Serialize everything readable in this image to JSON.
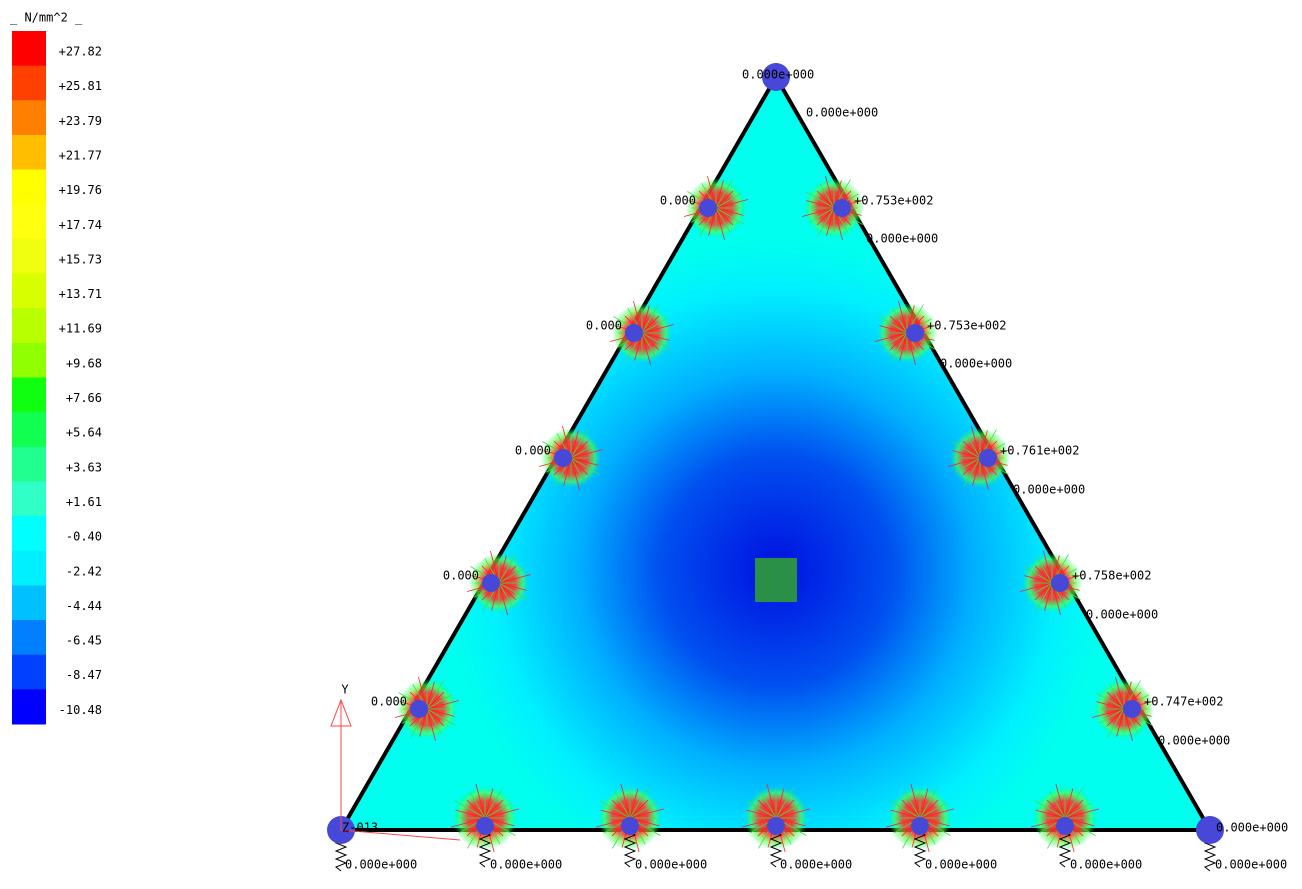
{
  "legend": {
    "title": "_ N/mm^2 _",
    "labels": [
      "+27.82",
      "+25.81",
      "+23.79",
      "+21.77",
      "+19.76",
      "+17.74",
      "+15.73",
      "+13.71",
      "+11.69",
      "+9.68",
      "+7.66",
      "+5.64",
      "+3.63",
      "+1.61",
      "-0.40",
      "-2.42",
      "-4.44",
      "-6.45",
      "-8.47",
      "-10.48"
    ]
  },
  "right_labels": [
    "+0.753e+002",
    "+0.753e+002",
    "+0.761e+002",
    "+0.758e+002",
    "+0.747e+002"
  ],
  "right_zero_labels": [
    "0.000e+000",
    "0.000e+000",
    "0.000e+000",
    "0.000e+000",
    "0.000e+000",
    "0.000e+000"
  ],
  "left_labels": [
    "0.000",
    "0.000",
    "0.000",
    "0.000",
    "0.000"
  ],
  "bottom_labels": [
    "0.000e+000",
    "0.000e+000",
    "0.000e+000",
    "0.000e+000",
    "0.000e+000",
    "0.000e+000",
    "0.000e+000"
  ],
  "top_label": "0.000e+000",
  "corner_right_label": "0.000e+000",
  "axis": {
    "y": "Y",
    "z": "Z-013"
  }
}
